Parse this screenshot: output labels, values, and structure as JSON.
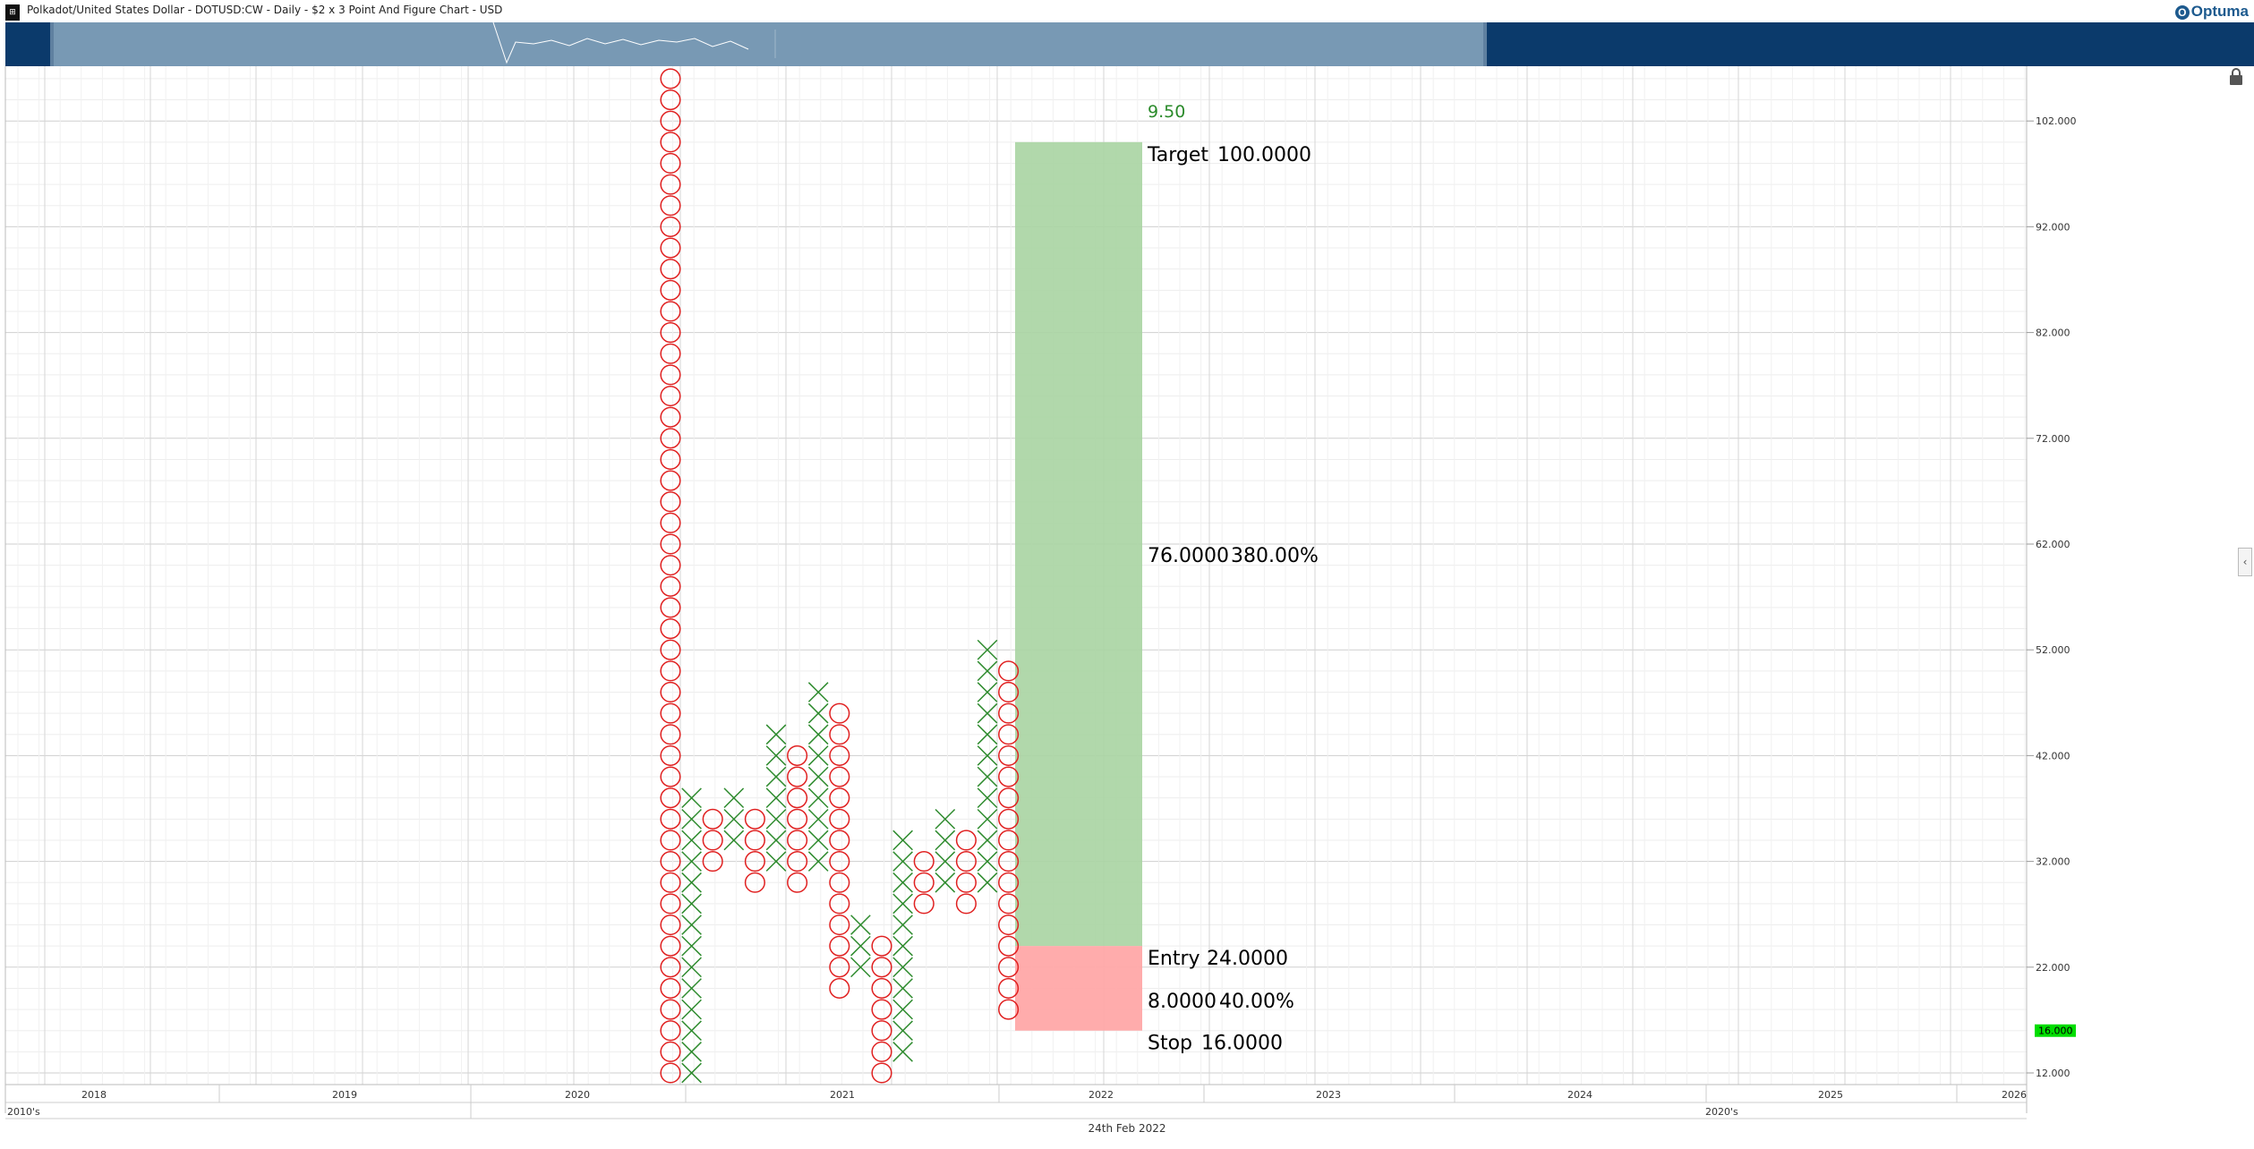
{
  "header": {
    "app_icon": "chart-app-icon",
    "title": "Polkadot/United States Dollar - DOTUSD:CW - Daily - $2 x 3 Point And Figure Chart - USD",
    "logo_text": "Optuma"
  },
  "footer": {
    "date_label": "24th Feb 2022"
  },
  "icons": {
    "lock": "lock-icon",
    "collapse": "chevron-left-icon"
  },
  "colors": {
    "x_color": "#2e8b2e",
    "o_color": "#e02020",
    "target_fill": "#a9d4a2",
    "stop_fill": "#ffa8a8",
    "price_tag": "#00dd00",
    "target_count_color": "#2a8a2a",
    "navigator_bg": "#0b3a6b",
    "navigator_window": "#7899b4"
  },
  "chart_data": {
    "type": "point-and-figure",
    "box_size": 2,
    "reversal": 3,
    "ylim": [
      11,
      106
    ],
    "y_ticks": [
      "12.000",
      "22.000",
      "32.000",
      "42.000",
      "52.000",
      "62.000",
      "72.000",
      "82.000",
      "92.000",
      "102.000"
    ],
    "year_labels": [
      "2018",
      "2019",
      "2020",
      "2021",
      "2022",
      "2023",
      "2024",
      "2025",
      "2026"
    ],
    "decade_labels": [
      "2010's",
      "2020's"
    ],
    "last_price_label": "16.000",
    "columns": [
      {
        "type": "O",
        "high": 106,
        "low": 12
      },
      {
        "type": "X",
        "high": 38,
        "low": 12
      },
      {
        "type": "O",
        "high": 36,
        "low": 32
      },
      {
        "type": "X",
        "high": 38,
        "low": 34
      },
      {
        "type": "O",
        "high": 36,
        "low": 30
      },
      {
        "type": "X",
        "high": 44,
        "low": 32
      },
      {
        "type": "O",
        "high": 42,
        "low": 30
      },
      {
        "type": "X",
        "high": 48,
        "low": 32
      },
      {
        "type": "O",
        "high": 46,
        "low": 20
      },
      {
        "type": "X",
        "high": 26,
        "low": 22
      },
      {
        "type": "O",
        "high": 24,
        "low": 12
      },
      {
        "type": "X",
        "high": 34,
        "low": 14
      },
      {
        "type": "O",
        "high": 32,
        "low": 28
      },
      {
        "type": "X",
        "high": 36,
        "low": 30
      },
      {
        "type": "O",
        "high": 34,
        "low": 28
      },
      {
        "type": "X",
        "high": 52,
        "low": 30
      },
      {
        "type": "O",
        "high": 50,
        "low": 18
      }
    ],
    "risk_reward": {
      "target_count": "9.50",
      "target_label": "Target",
      "target_value": "100.0000",
      "target": 100,
      "reward_value": "76.0000",
      "reward_pct": "380.00%",
      "entry_label": "Entry",
      "entry_value": "24.0000",
      "entry": 24,
      "risk_value": "8.0000",
      "risk_pct": "40.00%",
      "stop_label": "Stop",
      "stop_value": "16.0000",
      "stop": 16
    }
  }
}
